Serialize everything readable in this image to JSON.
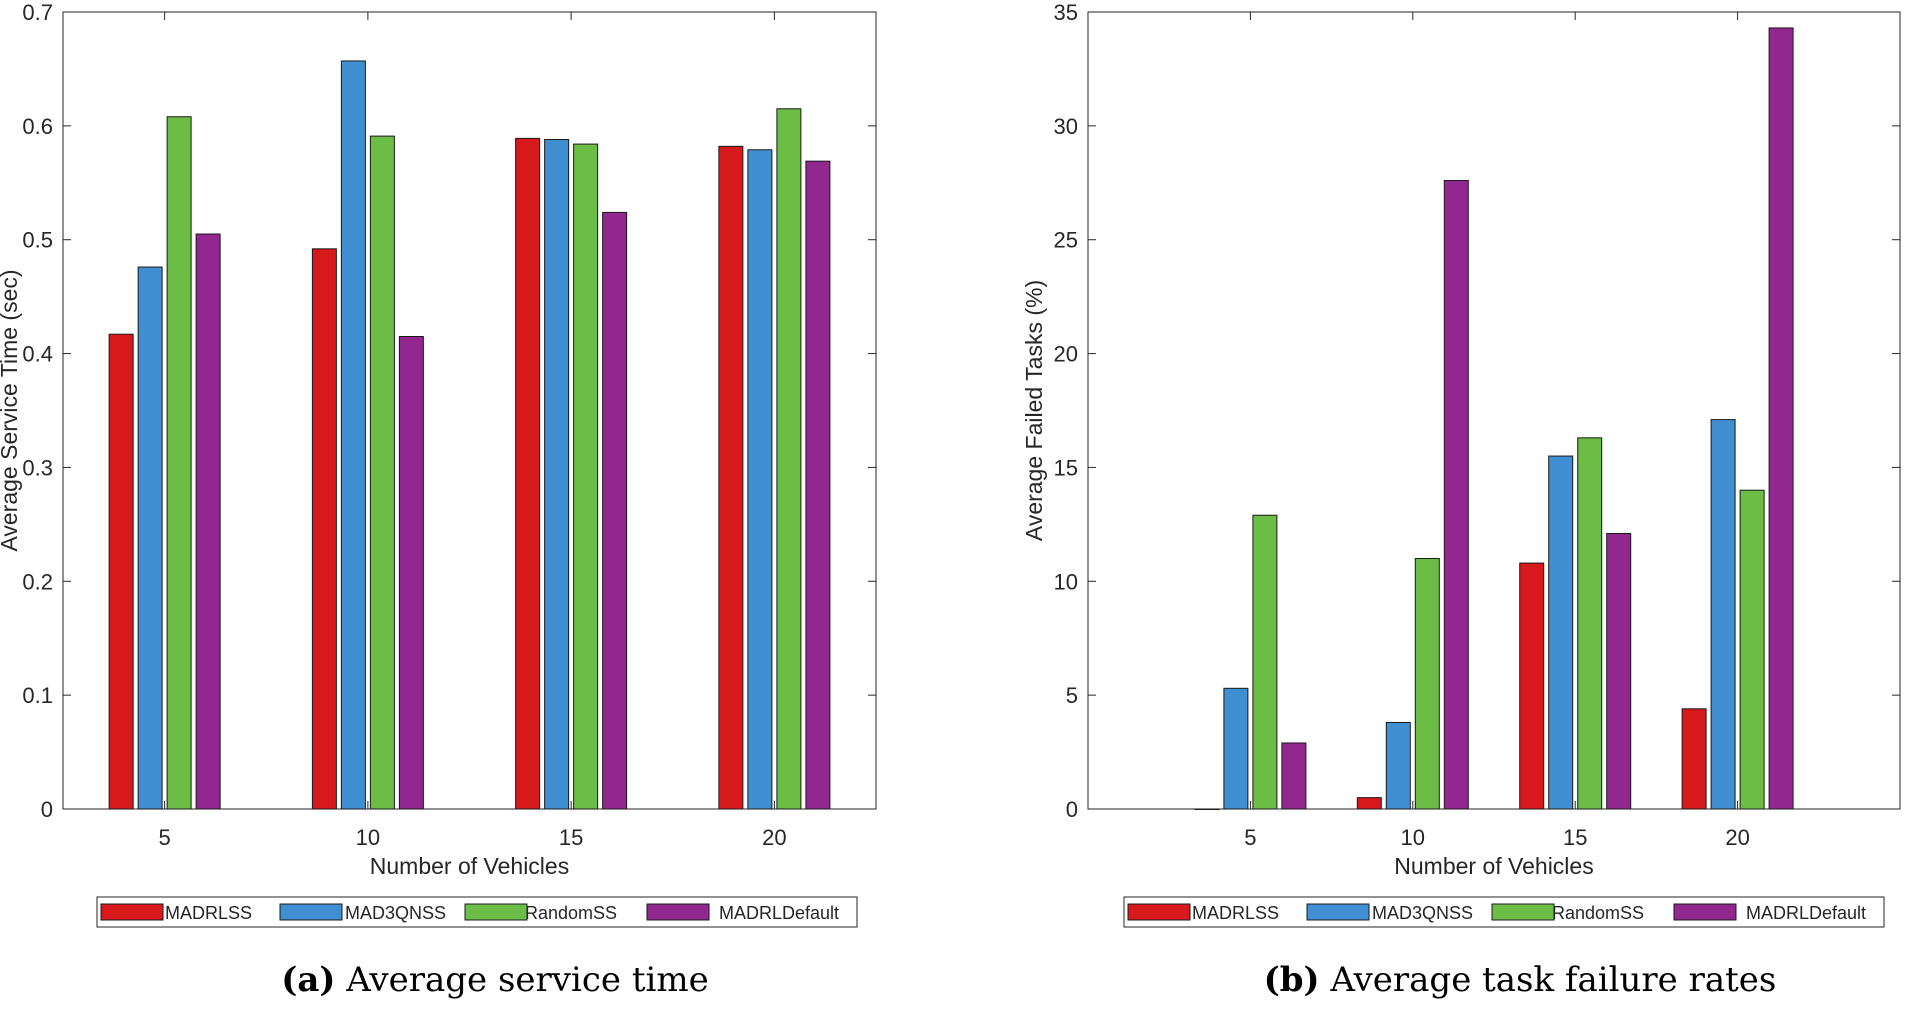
{
  "figure": {
    "legend_names": [
      "MADRLSS",
      "MAD3QNSS",
      "RandomSS",
      "MADRLDefault"
    ],
    "colors": [
      "#d7191c",
      "#3f8fd2",
      "#6bbd45",
      "#92278f"
    ],
    "captions": [
      {
        "letter": "(a)",
        "text": " Average service time"
      },
      {
        "letter": "(b)",
        "text": " Average task failure rates"
      }
    ]
  },
  "chart_data": [
    {
      "type": "bar",
      "title": "",
      "xlabel": "Number of Vehicles",
      "ylabel": "Average Service Time (sec)",
      "categories": [
        "5",
        "10",
        "15",
        "20"
      ],
      "xlim": [
        2.5,
        22.5
      ],
      "ylim": [
        0,
        0.7
      ],
      "yticks": [
        0,
        0.1,
        0.2,
        0.3,
        0.4,
        0.5,
        0.6,
        0.7
      ],
      "ytick_labels": [
        "0",
        "0.1",
        "0.2",
        "0.3",
        "0.4",
        "0.5",
        "0.6",
        "0.7"
      ],
      "grid": false,
      "legend_position": "bottom",
      "series": [
        {
          "name": "MADRLSS",
          "values": [
            0.417,
            0.492,
            0.589,
            0.582
          ]
        },
        {
          "name": "MAD3QNSS",
          "values": [
            0.476,
            0.657,
            0.588,
            0.579
          ]
        },
        {
          "name": "RandomSS",
          "values": [
            0.608,
            0.591,
            0.584,
            0.615
          ]
        },
        {
          "name": "MADRLDefault",
          "values": [
            0.505,
            0.415,
            0.524,
            0.569
          ]
        }
      ]
    },
    {
      "type": "bar",
      "title": "",
      "xlabel": "Number of Vehicles",
      "ylabel": "Average Failed Tasks (%)",
      "categories": [
        "5",
        "10",
        "15",
        "20"
      ],
      "xlim": [
        0,
        25
      ],
      "ylim": [
        0,
        35
      ],
      "yticks": [
        0,
        5,
        10,
        15,
        20,
        25,
        30,
        35
      ],
      "ytick_labels": [
        "0",
        "5",
        "10",
        "15",
        "20",
        "25",
        "30",
        "35"
      ],
      "grid": false,
      "legend_position": "bottom",
      "series": [
        {
          "name": "MADRLSS",
          "values": [
            0,
            0.5,
            10.8,
            4.4
          ]
        },
        {
          "name": "MAD3QNSS",
          "values": [
            5.3,
            3.8,
            15.5,
            17.1
          ]
        },
        {
          "name": "RandomSS",
          "values": [
            12.9,
            11.0,
            16.3,
            14.0
          ]
        },
        {
          "name": "MADRLDefault",
          "values": [
            2.9,
            27.6,
            12.1,
            34.3
          ]
        }
      ]
    }
  ]
}
